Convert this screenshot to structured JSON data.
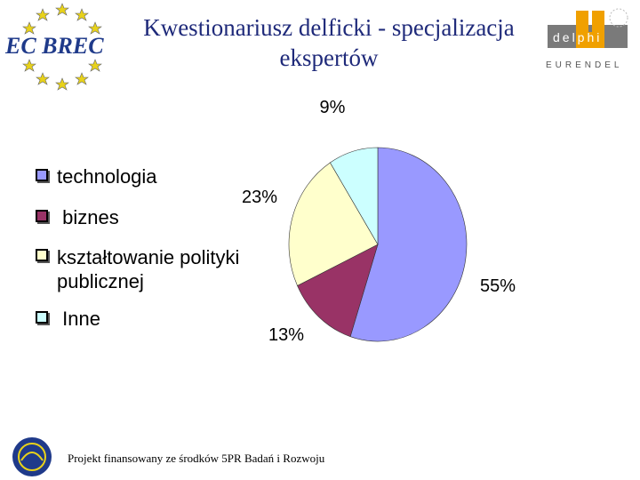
{
  "header": {
    "logo_left_text": "EC BREC",
    "title_line1": "Kwestionariusz delficki - specjalizacja",
    "title_line2": "ekspertów",
    "logo_right_top": "delphi",
    "logo_right_bottom": "EURENDEL"
  },
  "chart_data": {
    "type": "pie",
    "categories": [
      "technologia",
      "biznes",
      "kształtowanie polityki publicznej",
      "Inne"
    ],
    "values": [
      55,
      13,
      23,
      9
    ],
    "data_labels": [
      "55%",
      "13%",
      "23%",
      "9%"
    ],
    "colors": [
      "#9999ff",
      "#993366",
      "#ffffcc",
      "#ccffff"
    ],
    "legend_placement": "left"
  },
  "legend": {
    "items": [
      {
        "label": "technologia",
        "color": "#9999ff"
      },
      {
        "label": " biznes",
        "color": "#993366"
      },
      {
        "label": "kształtowanie polityki\npublicznej",
        "color": "#ffffcc"
      },
      {
        "label": " Inne",
        "color": "#ccffff"
      }
    ]
  },
  "footer": {
    "text": "Projekt finansowany ze środków 5PR Badań i Rozwoju"
  }
}
